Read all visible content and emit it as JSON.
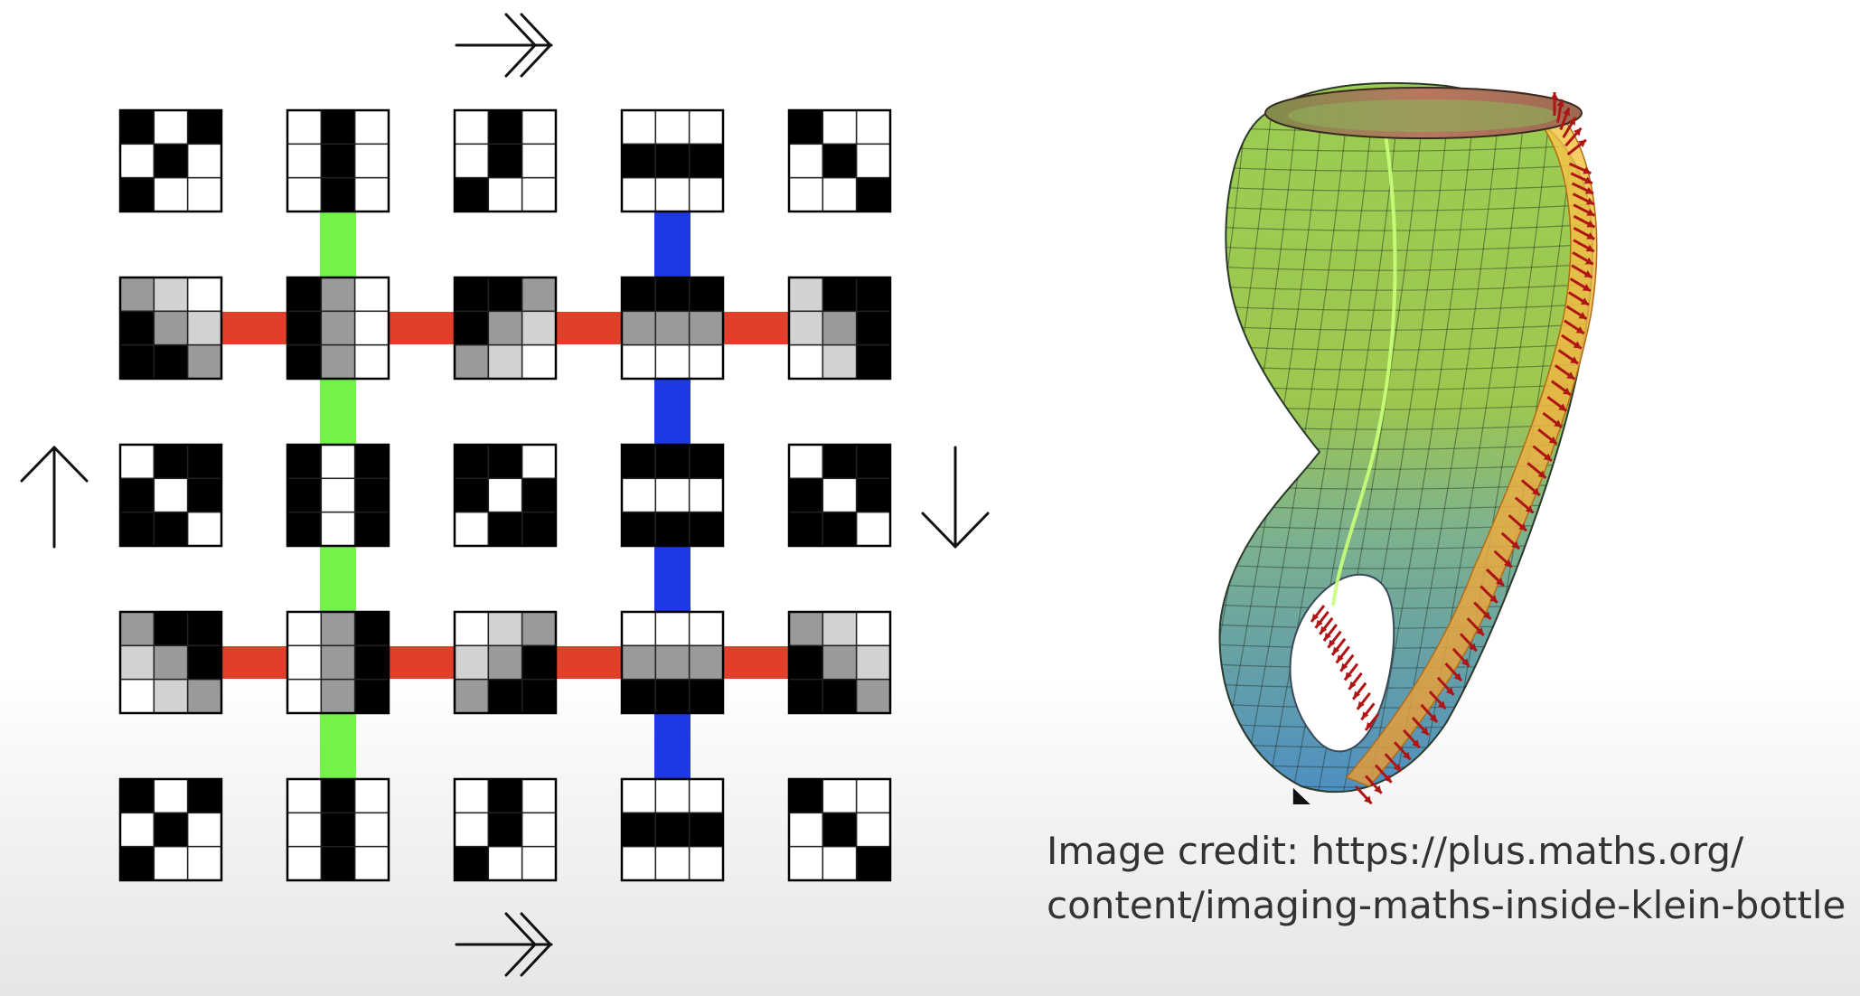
{
  "colors": {
    "background": "#ffffff",
    "horizontal_connector": "#e0402a",
    "vertical_connector_left": "#74f24a",
    "vertical_connector_right": "#1f38e6",
    "cell_black": "#000000",
    "cell_dark_gray": "#555555",
    "cell_mid_gray": "#9a9a9a",
    "cell_light_gray": "#d2d2d2",
    "cell_white": "#ffffff",
    "arrow": "#111111",
    "normal_vector": "#b01515",
    "text": "#333333"
  },
  "grid_diagram": {
    "arrows": {
      "top": "double-arrow-right-icon",
      "bottom": "double-arrow-right-icon",
      "left": "arrow-up-icon",
      "right": "arrow-down-icon"
    },
    "patches": [
      [
        [
          3,
          0,
          3,
          0,
          3,
          0,
          3,
          0,
          0
        ],
        [
          0,
          3,
          0,
          0,
          3,
          0,
          0,
          3,
          0
        ],
        [
          0,
          3,
          0,
          0,
          3,
          0,
          3,
          0,
          0
        ],
        [
          0,
          0,
          0,
          3,
          3,
          3,
          0,
          0,
          0
        ],
        [
          3,
          0,
          0,
          0,
          3,
          0,
          0,
          0,
          3
        ]
      ],
      [
        [
          2,
          1,
          0,
          3,
          2,
          1,
          3,
          3,
          2
        ],
        [
          3,
          2,
          0,
          3,
          2,
          0,
          3,
          2,
          0
        ],
        [
          3,
          3,
          2,
          3,
          2,
          1,
          2,
          1,
          0
        ],
        [
          3,
          3,
          3,
          2,
          2,
          2,
          0,
          0,
          0
        ],
        [
          1,
          3,
          3,
          1,
          2,
          3,
          0,
          1,
          3
        ]
      ],
      [
        [
          0,
          3,
          3,
          3,
          0,
          3,
          3,
          3,
          0
        ],
        [
          3,
          0,
          3,
          3,
          0,
          3,
          3,
          0,
          3
        ],
        [
          3,
          3,
          0,
          3,
          0,
          3,
          0,
          3,
          3
        ],
        [
          3,
          3,
          3,
          0,
          0,
          0,
          3,
          3,
          3
        ],
        [
          0,
          3,
          3,
          3,
          0,
          3,
          3,
          3,
          0
        ]
      ],
      [
        [
          2,
          3,
          3,
          1,
          2,
          3,
          0,
          1,
          2
        ],
        [
          0,
          2,
          3,
          0,
          2,
          3,
          0,
          2,
          3
        ],
        [
          0,
          1,
          2,
          1,
          2,
          3,
          2,
          3,
          3
        ],
        [
          0,
          0,
          0,
          2,
          2,
          2,
          3,
          3,
          3
        ],
        [
          2,
          1,
          0,
          3,
          2,
          1,
          3,
          3,
          2
        ]
      ],
      [
        [
          3,
          0,
          3,
          0,
          3,
          0,
          3,
          0,
          0
        ],
        [
          0,
          3,
          0,
          0,
          3,
          0,
          0,
          3,
          0
        ],
        [
          0,
          3,
          0,
          0,
          3,
          0,
          3,
          0,
          0
        ],
        [
          0,
          0,
          0,
          3,
          3,
          3,
          0,
          0,
          0
        ],
        [
          3,
          0,
          0,
          0,
          3,
          0,
          0,
          0,
          3
        ]
      ]
    ]
  },
  "klein_bottle": {
    "normal_vectors": "arrow-icon"
  },
  "credit": {
    "line1": "Image credit: https://plus.maths.org/",
    "line2": "content/imaging-maths-inside-klein-bottle"
  }
}
